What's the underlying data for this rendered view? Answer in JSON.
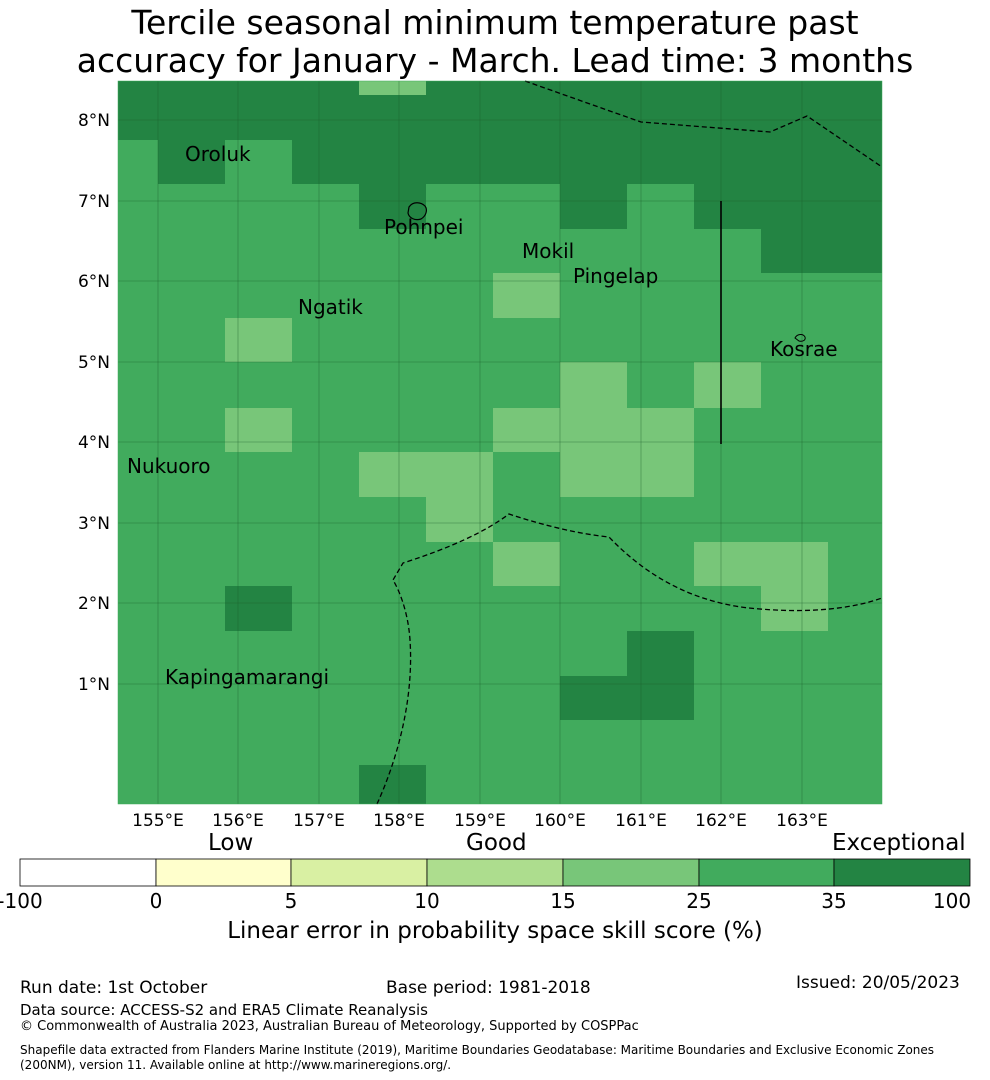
{
  "title_line1": "Tercile seasonal minimum temperature past",
  "title_line2": "accuracy for January - March. Lead time: 3 months",
  "map": {
    "lon_labels": [
      "155°E",
      "156°E",
      "157°E",
      "158°E",
      "159°E",
      "160°E",
      "161°E",
      "162°E",
      "163°E"
    ],
    "lat_labels": [
      "1°N",
      "2°N",
      "3°N",
      "4°N",
      "5°N",
      "6°N",
      "7°N",
      "8°N"
    ],
    "place_labels": [
      "Oroluk",
      "Pohnpei",
      "Mokil",
      "Pingelap",
      "Ngatik",
      "Kosrae",
      "Nukuoro",
      "Kapingamarangi"
    ],
    "colors": {
      "c25_35": "#41ab5d",
      "c15_25": "#78c679",
      "c35_100": "#238443"
    }
  },
  "colorbar": {
    "head_low": "Low",
    "head_good": "Good",
    "head_exceptional": "Exceptional",
    "ticks": [
      "-100",
      "0",
      "5",
      "10",
      "15",
      "25",
      "35",
      "100"
    ],
    "colors": [
      "#ffffff",
      "#ffffcc",
      "#d9f0a3",
      "#addd8e",
      "#78c679",
      "#41ab5d",
      "#238443"
    ],
    "label": "Linear error in probability space skill score (%)"
  },
  "footer": {
    "run_date": "Run date: 1st October",
    "base_period": "Base period: 1981-2018",
    "issued": "Issued: 20/05/2023",
    "data_source": "Data source: ACCESS-S2 and ERA5 Climate Reanalysis",
    "copyright": "© Commonwealth of Australia 2023, Australian Bureau of Meteorology, Supported by COSPPac",
    "shapefile1": "Shapefile data extracted from Flanders Marine Institute (2019), Maritime Boundaries Geodatabase: Maritime Boundaries and Exclusive Economic Zones",
    "shapefile2": "(200NM), version 11. Available online at http://www.marineregions.org/."
  }
}
